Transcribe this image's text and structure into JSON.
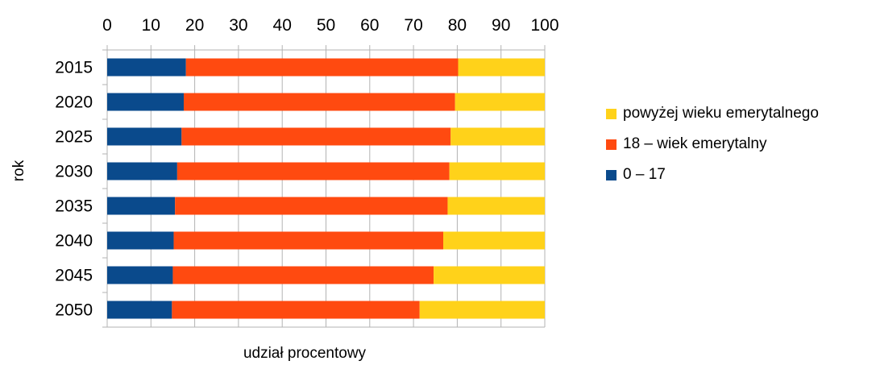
{
  "chart_data": {
    "type": "bar",
    "orientation": "horizontal",
    "stacked": true,
    "categories": [
      "2015",
      "2020",
      "2025",
      "2030",
      "2035",
      "2040",
      "2045",
      "2050"
    ],
    "series": [
      {
        "name": "0 – 17",
        "color": "#0a4a8c",
        "values": [
          18,
          17.5,
          17,
          16,
          15.5,
          15.2,
          15,
          14.8
        ]
      },
      {
        "name": "18 – wiek emerytalny",
        "color": "#ff4a10",
        "values": [
          62.2,
          62,
          61.5,
          62.2,
          62.3,
          61.6,
          59.6,
          56.6
        ]
      },
      {
        "name": "powyżej wieku emerytalnego",
        "color": "#ffd21a",
        "values": [
          19.8,
          20.5,
          21.5,
          21.8,
          22.2,
          23.2,
          25.4,
          28.6
        ]
      }
    ],
    "x_ticks": [
      "0",
      "10",
      "20",
      "30",
      "40",
      "50",
      "60",
      "70",
      "80",
      "90",
      "100"
    ],
    "xlim": [
      0,
      100
    ],
    "xlabel": "udział procentowy",
    "ylabel": "rok",
    "x_axis_position": "top",
    "grid": true,
    "legend_position": "right"
  }
}
